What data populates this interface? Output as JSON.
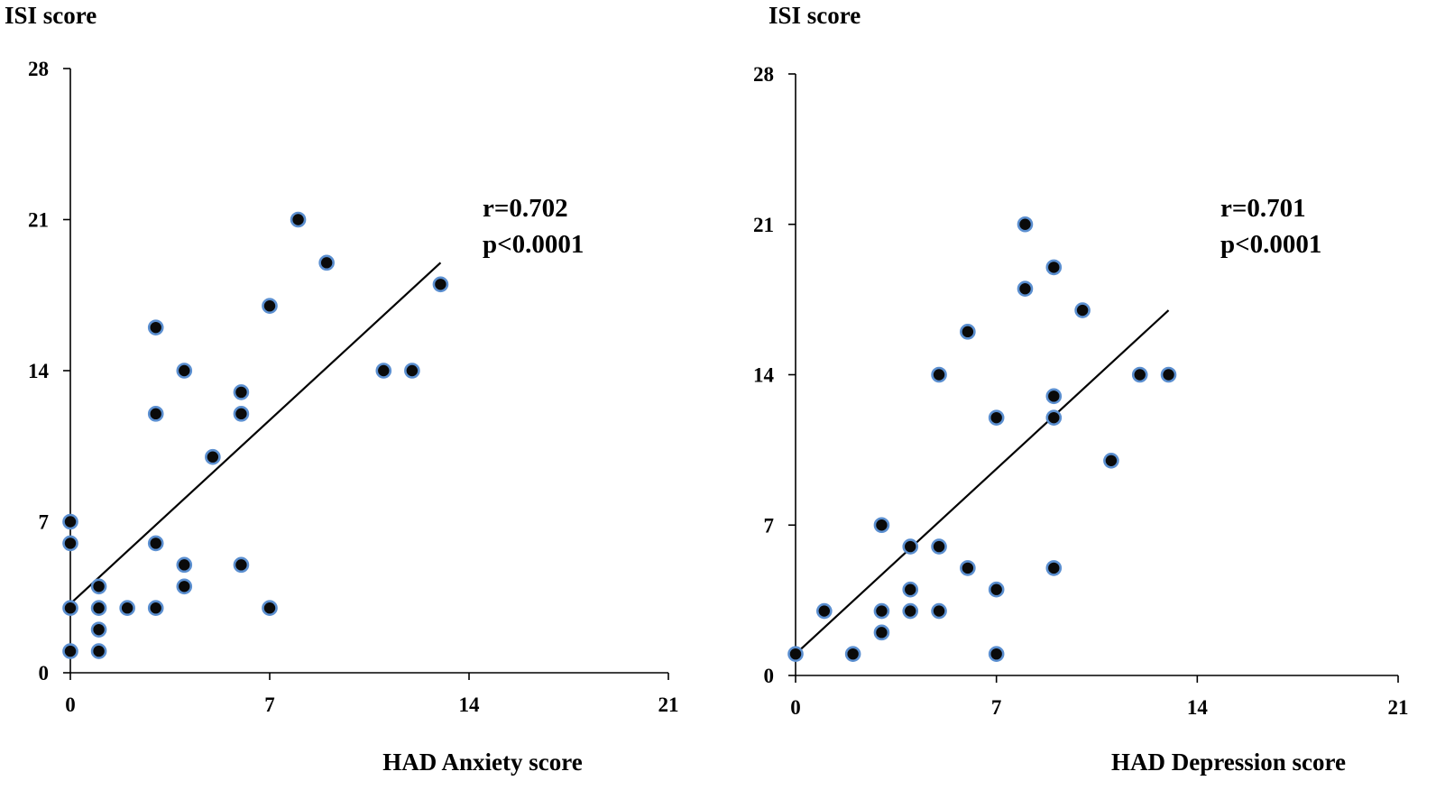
{
  "chart_data": [
    {
      "type": "scatter",
      "title": "",
      "ylabel": "ISI score",
      "xlabel": "HAD Anxiety score",
      "xlim": [
        0,
        21
      ],
      "ylim": [
        0,
        28
      ],
      "xticks": [
        0,
        7,
        14,
        21
      ],
      "yticks": [
        0,
        7,
        14,
        21,
        28
      ],
      "annotation": {
        "r": "r=0.702",
        "p": "p<0.0001"
      },
      "trendline": {
        "x": [
          0,
          13
        ],
        "y": [
          3.2,
          19
        ]
      },
      "points": [
        [
          0,
          1
        ],
        [
          0,
          3
        ],
        [
          0,
          6
        ],
        [
          0,
          7
        ],
        [
          1,
          1
        ],
        [
          1,
          2
        ],
        [
          1,
          3
        ],
        [
          1,
          4
        ],
        [
          2,
          3
        ],
        [
          3,
          3
        ],
        [
          3,
          6
        ],
        [
          3,
          12
        ],
        [
          3,
          16
        ],
        [
          4,
          4
        ],
        [
          4,
          5
        ],
        [
          4,
          14
        ],
        [
          5,
          10
        ],
        [
          6,
          5
        ],
        [
          6,
          12
        ],
        [
          6,
          13
        ],
        [
          7,
          3
        ],
        [
          7,
          17
        ],
        [
          8,
          21
        ],
        [
          9,
          19
        ],
        [
          11,
          14
        ],
        [
          12,
          14
        ],
        [
          13,
          18
        ]
      ]
    },
    {
      "type": "scatter",
      "title": "",
      "ylabel": "ISI score",
      "xlabel": "HAD Depression score",
      "xlim": [
        0,
        21
      ],
      "ylim": [
        0,
        28
      ],
      "xticks": [
        0,
        7,
        14,
        21
      ],
      "yticks": [
        0,
        7,
        14,
        21,
        28
      ],
      "annotation": {
        "r": "r=0.701",
        "p": "p<0.0001"
      },
      "trendline": {
        "x": [
          0,
          13
        ],
        "y": [
          1,
          17
        ]
      },
      "points": [
        [
          0,
          1
        ],
        [
          1,
          3
        ],
        [
          2,
          1
        ],
        [
          3,
          2
        ],
        [
          3,
          3
        ],
        [
          3,
          7
        ],
        [
          4,
          3
        ],
        [
          4,
          4
        ],
        [
          4,
          6
        ],
        [
          5,
          3
        ],
        [
          5,
          6
        ],
        [
          5,
          14
        ],
        [
          6,
          5
        ],
        [
          6,
          16
        ],
        [
          7,
          1
        ],
        [
          7,
          4
        ],
        [
          7,
          12
        ],
        [
          8,
          18
        ],
        [
          8,
          21
        ],
        [
          9,
          5
        ],
        [
          9,
          12
        ],
        [
          9,
          13
        ],
        [
          9,
          19
        ],
        [
          10,
          17
        ],
        [
          11,
          10
        ],
        [
          12,
          14
        ],
        [
          13,
          14
        ]
      ]
    }
  ]
}
